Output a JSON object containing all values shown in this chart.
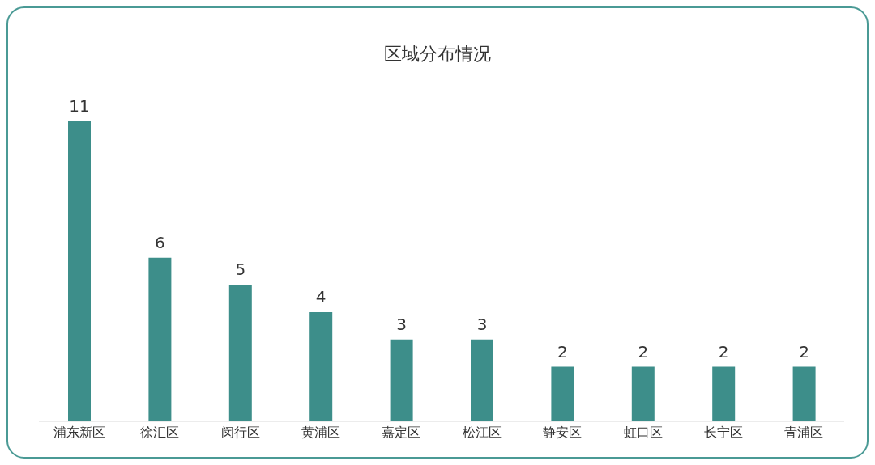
{
  "chart_data": {
    "type": "bar",
    "title": "区域分布情况",
    "categories": [
      "浦东新区",
      "徐汇区",
      "闵行区",
      "黄浦区",
      "嘉定区",
      "松江区",
      "静安区",
      "虹口区",
      "长宁区",
      "青浦区"
    ],
    "values": [
      11,
      6,
      5,
      4,
      3,
      3,
      2,
      2,
      2,
      2
    ],
    "color": "#3d8e8a",
    "data_labels": true
  }
}
